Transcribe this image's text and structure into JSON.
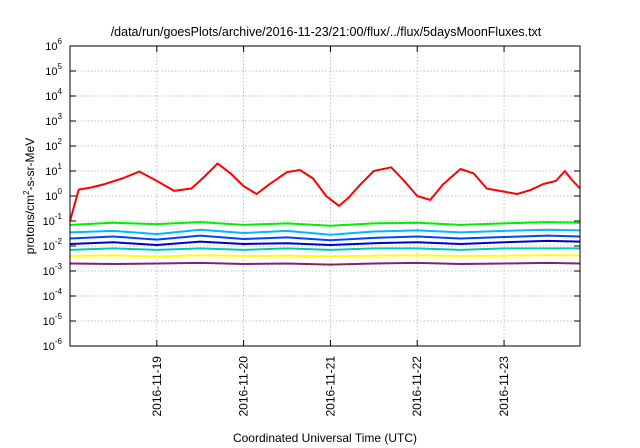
{
  "chart_data": {
    "type": "line",
    "title": "/data/run/goesPlots/archive/2016-11-23/21:00/flux/../flux/5daysMoonFluxes.txt",
    "xlabel": "Coordinated Universal Time (UTC)",
    "ylabel": {
      "prefix": "protons/cm",
      "sup": "2",
      "suffix": "-s-sr-MeV"
    },
    "yscale": "log",
    "ylim_exponents": [
      -6,
      6
    ],
    "y_ticks": [
      {
        "base": "10",
        "exp": "6"
      },
      {
        "base": "10",
        "exp": "5"
      },
      {
        "base": "10",
        "exp": "4"
      },
      {
        "base": "10",
        "exp": "3"
      },
      {
        "base": "10",
        "exp": "2"
      },
      {
        "base": "10",
        "exp": "1"
      },
      {
        "base": "10",
        "exp": "0"
      },
      {
        "base": "10",
        "exp": "-1"
      },
      {
        "base": "10",
        "exp": "-2"
      },
      {
        "base": "10",
        "exp": "-3"
      },
      {
        "base": "10",
        "exp": "-4"
      },
      {
        "base": "10",
        "exp": "-5"
      },
      {
        "base": "10",
        "exp": "-6"
      }
    ],
    "xlim": [
      "2016-11-18 00:00",
      "2016-11-23 21:00"
    ],
    "x_ticks": [
      "2016-11-19",
      "2016-11-20",
      "2016-11-21",
      "2016-11-22",
      "2016-11-23"
    ],
    "grid": true,
    "series": [
      {
        "color": "#ff0000",
        "x_days": [
          0.0,
          0.1,
          0.25,
          0.4,
          0.6,
          0.8,
          1.0,
          1.2,
          1.4,
          1.55,
          1.7,
          1.85,
          2.0,
          2.15,
          2.3,
          2.5,
          2.65,
          2.8,
          2.95,
          3.1,
          3.2,
          3.35,
          3.5,
          3.7,
          3.85,
          4.0,
          4.15,
          4.3,
          4.5,
          4.65,
          4.8,
          5.0,
          5.15,
          5.3,
          5.45,
          5.6,
          5.7,
          5.78,
          5.875
        ],
        "y": [
          0.1,
          1.8,
          2.2,
          3.0,
          5.0,
          9.5,
          4.0,
          1.6,
          2.0,
          6.0,
          20.0,
          8.0,
          2.5,
          1.2,
          3.0,
          9.0,
          11.0,
          5.0,
          1.0,
          0.4,
          0.8,
          3.0,
          10.0,
          14.0,
          4.0,
          1.0,
          0.7,
          3.0,
          12.0,
          8.0,
          2.0,
          1.5,
          1.2,
          1.7,
          3.0,
          4.0,
          10.0,
          4.5,
          2.0
        ]
      },
      {
        "color": "#00ee00",
        "x_days": [
          0.0,
          0.5,
          1.0,
          1.5,
          2.0,
          2.5,
          3.0,
          3.5,
          4.0,
          4.5,
          5.0,
          5.5,
          5.875
        ],
        "y": [
          0.07,
          0.085,
          0.075,
          0.09,
          0.07,
          0.08,
          0.065,
          0.08,
          0.085,
          0.07,
          0.08,
          0.09,
          0.085
        ]
      },
      {
        "color": "#00b8ff",
        "x_days": [
          0.0,
          0.5,
          1.0,
          1.5,
          2.0,
          2.5,
          3.0,
          3.5,
          4.0,
          4.5,
          5.0,
          5.5,
          5.875
        ],
        "y": [
          0.035,
          0.04,
          0.03,
          0.045,
          0.033,
          0.04,
          0.028,
          0.038,
          0.042,
          0.035,
          0.04,
          0.045,
          0.042
        ]
      },
      {
        "color": "#0044ff",
        "x_days": [
          0.0,
          0.5,
          1.0,
          1.5,
          2.0,
          2.5,
          3.0,
          3.5,
          4.0,
          4.5,
          5.0,
          5.5,
          5.875
        ],
        "y": [
          0.02,
          0.024,
          0.018,
          0.026,
          0.019,
          0.022,
          0.017,
          0.021,
          0.024,
          0.02,
          0.023,
          0.026,
          0.024
        ]
      },
      {
        "color": "#0000cc",
        "x_days": [
          0.0,
          0.5,
          1.0,
          1.5,
          2.0,
          2.5,
          3.0,
          3.5,
          4.0,
          4.5,
          5.0,
          5.5,
          5.875
        ],
        "y": [
          0.012,
          0.014,
          0.011,
          0.015,
          0.012,
          0.013,
          0.011,
          0.013,
          0.014,
          0.012,
          0.014,
          0.016,
          0.015
        ]
      },
      {
        "color": "#00ccaa",
        "x_days": [
          0.0,
          0.5,
          1.0,
          1.5,
          2.0,
          2.5,
          3.0,
          3.5,
          4.0,
          4.5,
          5.0,
          5.5,
          5.875
        ],
        "y": [
          0.007,
          0.008,
          0.007,
          0.008,
          0.007,
          0.008,
          0.007,
          0.008,
          0.008,
          0.007,
          0.008,
          0.008,
          0.008
        ]
      },
      {
        "color": "#ffff00",
        "x_days": [
          0.0,
          0.5,
          1.0,
          1.5,
          2.0,
          2.5,
          3.0,
          3.5,
          4.0,
          4.5,
          5.0,
          5.5,
          5.875
        ],
        "y": [
          0.004,
          0.0042,
          0.0038,
          0.0043,
          0.004,
          0.0041,
          0.0039,
          0.0041,
          0.0042,
          0.004,
          0.0041,
          0.0043,
          0.0042
        ]
      },
      {
        "color": "#882266",
        "x_days": [
          0.0,
          0.5,
          1.0,
          1.5,
          2.0,
          2.5,
          3.0,
          3.5,
          4.0,
          4.5,
          5.0,
          5.5,
          5.875
        ],
        "y": [
          0.002,
          0.0019,
          0.002,
          0.0021,
          0.0019,
          0.002,
          0.0018,
          0.002,
          0.0021,
          0.0019,
          0.002,
          0.0021,
          0.002
        ]
      }
    ]
  }
}
